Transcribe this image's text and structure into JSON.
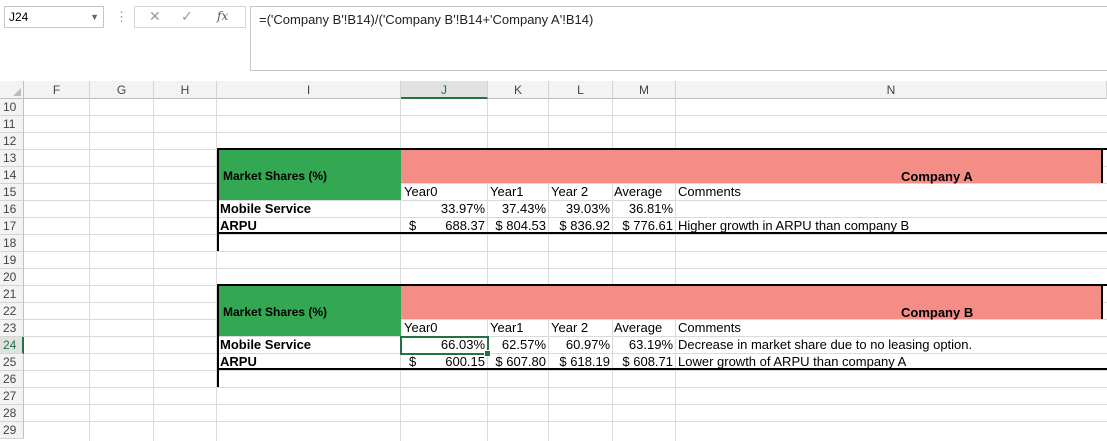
{
  "formula_bar": {
    "name_box": "J24",
    "more_dots": "⋮",
    "cancel_glyph": "✕",
    "enter_glyph": "✓",
    "fx_label": "fx",
    "formula": "=('Company B'!B14)/('Company B'!B14+'Company A'!B14)"
  },
  "columns": [
    "F",
    "G",
    "H",
    "I",
    "J",
    "K",
    "L",
    "M",
    "N"
  ],
  "selected_column": "J",
  "rows": [
    "10",
    "11",
    "12",
    "13",
    "14",
    "15",
    "16",
    "17",
    "18",
    "19",
    "20",
    "21",
    "22",
    "23",
    "24",
    "25",
    "26",
    "27",
    "28",
    "29"
  ],
  "selected_row": "24",
  "table_a": {
    "title": "Market Shares (%)",
    "company": "Company A",
    "headers": [
      "Year0",
      "Year1",
      "Year 2",
      "Average",
      "Comments"
    ],
    "rows": [
      {
        "label": "Mobile Service",
        "year0": "33.97%",
        "year1": "37.43%",
        "year2": "39.03%",
        "average": "36.81%",
        "comment": ""
      },
      {
        "label": "ARPU",
        "year0_cur": "$",
        "year0": "688.37",
        "year1": "$ 804.53",
        "year2": "$ 836.92",
        "average": "$ 776.61",
        "comment": "Higher growth in ARPU than company B"
      }
    ]
  },
  "table_b": {
    "title": "Market Shares (%)",
    "company": "Company B",
    "headers": [
      "Year0",
      "Year1",
      "Year 2",
      "Average",
      "Comments"
    ],
    "rows": [
      {
        "label": "Mobile Service",
        "year0": "66.03%",
        "year1": "62.57%",
        "year2": "60.97%",
        "average": "63.19%",
        "comment": "Decrease in market share due to no leasing option."
      },
      {
        "label": "ARPU",
        "year0_cur": "$",
        "year0": "600.15",
        "year1": "$ 607.80",
        "year2": "$ 618.19",
        "average": "$ 608.71",
        "comment": "Lower growth of ARPU than company A"
      }
    ]
  },
  "colors": {
    "green_header": "#33a752",
    "company_header": "#f38d86",
    "selection": "#217346"
  }
}
